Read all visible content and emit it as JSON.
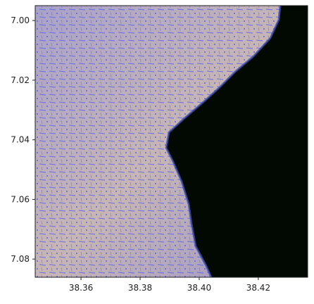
{
  "chart_data": {
    "type": "image",
    "xlim": [
      38.3445,
      38.4367
    ],
    "ylim": [
      7.0861,
      6.995
    ],
    "xticks": [
      38.36,
      38.38,
      {
        "value": 38.4,
        "label": "38.40"
      },
      38.42
    ],
    "yticks": [
      {
        "value": 7,
        "label": "7.00"
      },
      7.02,
      7.04,
      7.06,
      7.08
    ]
  }
}
